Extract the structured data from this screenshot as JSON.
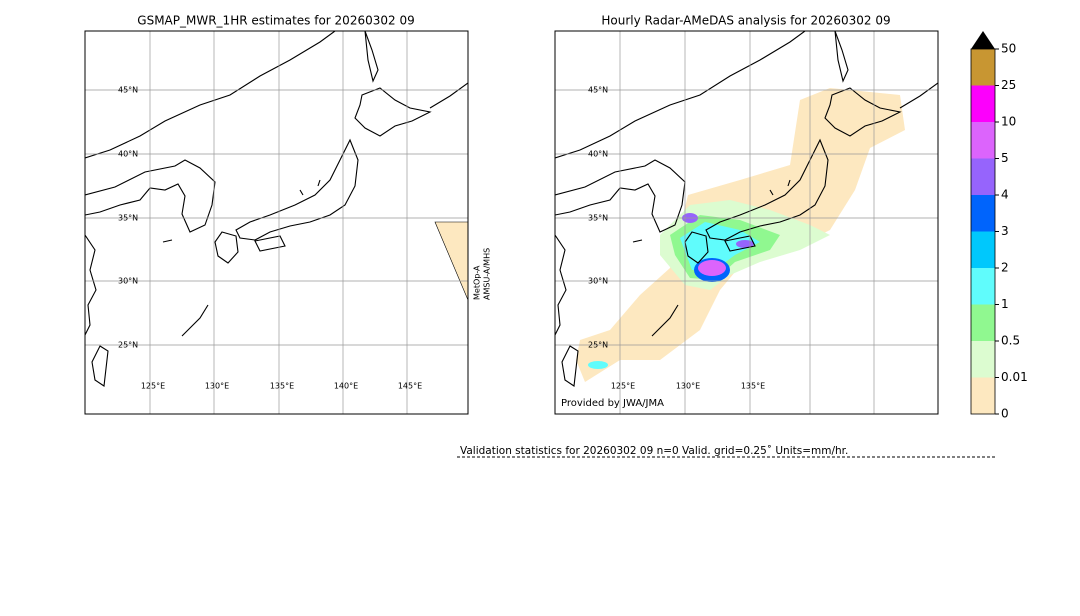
{
  "left_panel": {
    "title": "GSMAP_MWR_1HR estimates for 20260302 09",
    "lat_labels": [
      "45°N",
      "40°N",
      "35°N",
      "30°N",
      "25°N"
    ],
    "lon_labels": [
      "125°E",
      "130°E",
      "135°E",
      "140°E",
      "145°E"
    ],
    "satellite_label": [
      "MetOp-A",
      "AMSU-A/MHS"
    ]
  },
  "right_panel": {
    "title": "Hourly Radar-AMeDAS analysis for 20260302 09",
    "lat_labels": [
      "45°N",
      "40°N",
      "35°N",
      "30°N",
      "25°N"
    ],
    "lon_labels": [
      "125°E",
      "130°E",
      "135°E"
    ],
    "credit": "Provided by JWA/JMA"
  },
  "colorbar": {
    "ticks": [
      0,
      0.01,
      0.5,
      1,
      2,
      3,
      4,
      5,
      10,
      25,
      50
    ],
    "colors": [
      "#fde8c0",
      "#dcfcd0",
      "#90f890",
      "#60fcfc",
      "#00c8fc",
      "#0064fc",
      "#9664fc",
      "#dc64fc",
      "#fc00fc",
      "#c89632"
    ],
    "over_color": "#000000"
  },
  "footer": {
    "validation": "Validation statistics for 20260302 09  n=0 Valid. grid=0.25˚ Units=mm/hr."
  }
}
